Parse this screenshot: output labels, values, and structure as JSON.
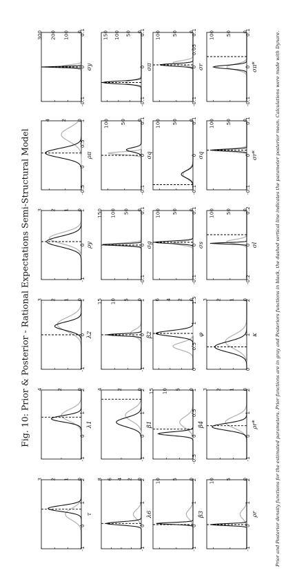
{
  "title": "Fig. 10: Prior & Posterior - Rational Expectations Semi-Structural Model",
  "caption": "Prior and Posterior density functions for the estimated parameters. Prior functions are in gray and Posteriors functions in black, the dashed vertical line indicates the parameter posterior mean. Calculations were made with Dynare.",
  "colors": {
    "prior": "#b4b4b4",
    "posterior": "#111111",
    "mode": "#000000",
    "frame": "#000000"
  },
  "chart_data": [
    {
      "type": "line",
      "label": "τ",
      "xlim": [
        -1,
        2
      ],
      "xticks": [
        "-1",
        "0",
        "1",
        "2"
      ],
      "ylim": [
        0,
        3
      ],
      "yticks": [
        "0",
        "1",
        "2",
        "3"
      ],
      "prior": {
        "mean": 0.5,
        "sd": 0.25,
        "peak": 1.2
      },
      "posterior": {
        "mean": 0.75,
        "sd": 0.13,
        "peak": 2.5
      },
      "posterior_mean": 0.72
    },
    {
      "type": "line",
      "label": "λ1",
      "xlim": [
        -1,
        2
      ],
      "xticks": [
        "-1",
        "0",
        "1",
        "2"
      ],
      "ylim": [
        0,
        4
      ],
      "yticks": [
        "0",
        "2",
        "4"
      ],
      "prior": {
        "mean": 0.9,
        "sd": 0.25,
        "peak": 2.0
      },
      "posterior": {
        "mean": 0.75,
        "sd": 0.14,
        "peak": 3.0
      },
      "posterior_mean": 0.82
    },
    {
      "type": "line",
      "label": "λ2",
      "xlim": [
        -1,
        1
      ],
      "xticks": [
        "-1",
        "0",
        "1"
      ],
      "ylim": [
        0,
        3
      ],
      "yticks": [
        "0",
        "1",
        "2",
        "3"
      ],
      "prior": {
        "mean": 0.3,
        "sd": 0.2,
        "peak": 1.8
      },
      "posterior": {
        "mean": 0.25,
        "sd": 0.12,
        "peak": 2.0
      },
      "posterior_mean": 0.0
    },
    {
      "type": "line",
      "label": "ρy",
      "xlim": [
        -1,
        1
      ],
      "xticks": [
        "-1",
        "0",
        "1"
      ],
      "ylim": [
        0,
        3
      ],
      "yticks": [
        "0",
        "1",
        "2",
        "3"
      ],
      "prior": {
        "mean": 0.2,
        "sd": 0.16,
        "peak": 2.4
      },
      "posterior": {
        "mean": 0.1,
        "sd": 0.15,
        "peak": 2.6
      },
      "posterior_mean": 0.1
    },
    {
      "type": "line",
      "label": "ρπ",
      "xlim": [
        -0.5,
        1
      ],
      "xticks": [
        "-0.5",
        "0",
        "0.5",
        "1"
      ],
      "ylim": [
        0,
        5
      ],
      "yticks": [
        "0",
        "2",
        "4"
      ],
      "prior": {
        "mean": 0.7,
        "sd": 0.15,
        "peak": 2.5
      },
      "posterior": {
        "mean": 0.3,
        "sd": 0.1,
        "peak": 4.5
      },
      "posterior_mean": 0.3
    },
    {
      "type": "line",
      "label": "σy",
      "xlim": [
        -0.1,
        0.1
      ],
      "xticks": [
        "-0.1",
        "0",
        "0.1"
      ],
      "ylim": [
        0,
        300
      ],
      "yticks": [
        "0",
        "100",
        "200",
        "300"
      ],
      "prior": {
        "mean": 0.002,
        "sd": 0.004,
        "peak": 150
      },
      "posterior": {
        "mean": 0.0,
        "sd": 0.0015,
        "peak": 300
      },
      "posterior_mean": 0.0
    },
    {
      "type": "line",
      "label": "λ6",
      "xlim": [
        -1,
        2
      ],
      "xticks": [
        "-1",
        "0",
        "1",
        "2"
      ],
      "ylim": [
        0,
        8
      ],
      "yticks": [
        "0",
        "2",
        "4",
        "6",
        "8"
      ],
      "prior": {
        "mean": 0.5,
        "sd": 0.2,
        "peak": 1.6
      },
      "posterior": {
        "mean": 0.1,
        "sd": 0.07,
        "peak": 7.0
      },
      "posterior_mean": 0.1
    },
    {
      "type": "line",
      "label": "β1",
      "xlim": [
        -1,
        2
      ],
      "xticks": [
        "-1",
        "0",
        "1",
        "2"
      ],
      "ylim": [
        0,
        4
      ],
      "yticks": [
        "0",
        "2",
        "4"
      ],
      "prior": {
        "mean": 0.9,
        "sd": 0.25,
        "peak": 1.6
      },
      "posterior": {
        "mean": 0.6,
        "sd": 0.2,
        "peak": 2.5
      },
      "posterior_mean": 1.6
    },
    {
      "type": "line",
      "label": "β2",
      "xlim": [
        -1,
        1
      ],
      "xticks": [
        "-1",
        "0",
        "1"
      ],
      "ylim": [
        0,
        15
      ],
      "yticks": [
        "0",
        "5",
        "10",
        "15"
      ],
      "prior": {
        "mean": 0.05,
        "sd": 0.1,
        "peak": 4
      },
      "posterior": {
        "mean": 0.0,
        "sd": 0.03,
        "peak": 13
      },
      "posterior_mean": 0.0
    },
    {
      "type": "line",
      "label": "σg",
      "xlim": [
        -0.1,
        0.1
      ],
      "xticks": [
        "-0.1",
        "0",
        "0.1"
      ],
      "ylim": [
        0,
        150
      ],
      "yticks": [
        "0",
        "50",
        "100",
        "150"
      ],
      "prior": {
        "mean": 0.002,
        "sd": 0.004,
        "peak": 110
      },
      "posterior": {
        "mean": 0.001,
        "sd": 0.0025,
        "peak": 150
      },
      "posterior_mean": 0.0
    },
    {
      "type": "line",
      "label": "σq",
      "xlim": [
        -0.1,
        0.1
      ],
      "xticks": [
        "-0.1",
        "0",
        "0.1"
      ],
      "ylim": [
        0,
        120
      ],
      "yticks": [
        "0",
        "50",
        "100"
      ],
      "prior": {
        "mean": 0.006,
        "sd": 0.004,
        "peak": 100
      },
      "posterior": {
        "mean": 0.016,
        "sd": 0.006,
        "peak": 45
      },
      "posterior_mean": 0.0
    },
    {
      "type": "line",
      "label": "σπ",
      "xlim": [
        -0.1,
        0.1
      ],
      "xticks": [
        "-0.1",
        "0",
        "0.1"
      ],
      "ylim": [
        0,
        175
      ],
      "yticks": [
        "0",
        "50",
        "100",
        "150"
      ],
      "prior": {
        "mean": -0.045,
        "sd": 0.006,
        "peak": 70
      },
      "posterior": {
        "mean": -0.045,
        "sd": 0.004,
        "peak": 170
      },
      "posterior_mean": -0.045
    },
    {
      "type": "line",
      "label": "β3",
      "xlim": [
        -1,
        2
      ],
      "xticks": [
        "-1",
        "0",
        "1",
        "2"
      ],
      "ylim": [
        0,
        12
      ],
      "yticks": [
        "0",
        "5",
        "10"
      ],
      "prior": {
        "mean": 0.5,
        "sd": 0.2,
        "peak": 2
      },
      "posterior": {
        "mean": 0.1,
        "sd": 0.04,
        "peak": 11
      },
      "posterior_mean": 0.05
    },
    {
      "type": "line",
      "label": "β4",
      "xlim": [
        -0.5,
        1
      ],
      "xticks": [
        "-0.5",
        "0",
        "0.5",
        "1"
      ],
      "ylim": [
        0,
        15
      ],
      "yticks": [
        "0",
        "5",
        "10",
        "15"
      ],
      "prior": {
        "mean": 0.3,
        "sd": 0.12,
        "peak": 5
      },
      "posterior": {
        "mean": 0.05,
        "sd": 0.04,
        "peak": 13
      },
      "posterior_mean": 0.15
    },
    {
      "type": "line",
      "label": "φ",
      "xlim": [
        0,
        1.5
      ],
      "xticks": [
        "0",
        "0.5",
        "1",
        "1.5"
      ],
      "ylim": [
        0,
        7
      ],
      "yticks": [
        "0",
        "2",
        "4",
        "6"
      ],
      "prior": {
        "mean": 0.5,
        "sd": 0.08,
        "peak": 3.5
      },
      "posterior": {
        "mean": 0.78,
        "sd": 0.06,
        "peak": 6.5
      },
      "posterior_mean": 0.78
    },
    {
      "type": "line",
      "label": "σs",
      "xlim": [
        -0.1,
        0.1
      ],
      "xticks": [
        "-0.1",
        "0",
        "0.1"
      ],
      "ylim": [
        0,
        120
      ],
      "yticks": [
        "0",
        "50",
        "100"
      ],
      "prior": {
        "mean": 0.005,
        "sd": 0.005,
        "peak": 60
      },
      "posterior": {
        "mean": 0.008,
        "sd": 0.0035,
        "peak": 115
      },
      "posterior_mean": 0.008
    },
    {
      "type": "line",
      "label": "σq",
      "xlim": [
        -0.1,
        0.1
      ],
      "xticks": [
        "-0.1",
        "0",
        "0.1"
      ],
      "ylim": [
        0,
        120
      ],
      "yticks": [
        "0",
        "50",
        "100"
      ],
      "prior": {
        "mean": -0.055,
        "sd": 0.012,
        "peak": 30
      },
      "posterior": {
        "mean": -0.055,
        "sd": 0.01,
        "peak": 35
      },
      "posterior_mean": -0.085
    },
    {
      "type": "line",
      "label": "σr",
      "xlim": [
        -0.1,
        0.1
      ],
      "xticks": [
        "-0.1",
        "0",
        "0.05",
        "0.1"
      ],
      "ylim": [
        0,
        120
      ],
      "yticks": [
        "0",
        "50",
        "100"
      ],
      "prior": {
        "mean": 0.012,
        "sd": 0.006,
        "peak": 60
      },
      "posterior": {
        "mean": 0.006,
        "sd": 0.0035,
        "peak": 100
      },
      "posterior_mean": 0.006
    },
    {
      "type": "line",
      "label": "ρr",
      "xlim": [
        -1,
        2
      ],
      "xticks": [
        "-1",
        "0",
        "1",
        "2"
      ],
      "ylim": [
        0,
        12
      ],
      "yticks": [
        "0",
        "5",
        "10"
      ],
      "prior": {
        "mean": 0.5,
        "sd": 0.2,
        "peak": 2
      },
      "posterior": {
        "mean": 0.05,
        "sd": 0.04,
        "peak": 11
      },
      "posterior_mean": 0.05
    },
    {
      "type": "line",
      "label": "ρr*",
      "xlim": [
        -1,
        2
      ],
      "xticks": [
        "-1",
        "0",
        "1",
        "2"
      ],
      "ylim": [
        0,
        3
      ],
      "yticks": [
        "0",
        "1",
        "2",
        "3"
      ],
      "prior": {
        "mean": 0.6,
        "sd": 0.25,
        "peak": 1.6
      },
      "posterior": {
        "mean": 0.4,
        "sd": 0.15,
        "peak": 2.6
      },
      "posterior_mean": 0.45
    },
    {
      "type": "line",
      "label": "κ",
      "xlim": [
        0,
        2
      ],
      "xticks": [
        "0",
        "1",
        "2"
      ],
      "ylim": [
        0,
        3
      ],
      "yticks": [
        "0",
        "1",
        "2",
        "3"
      ],
      "prior": {
        "mean": 0.8,
        "sd": 0.2,
        "peak": 1.6
      },
      "posterior": {
        "mean": 0.65,
        "sd": 0.15,
        "peak": 2.4
      },
      "posterior_mean": 0.65
    },
    {
      "type": "line",
      "label": "σl",
      "xlim": [
        -0.2,
        0.2
      ],
      "xticks": [
        "-0.2",
        "0",
        "0.2"
      ],
      "ylim": [
        0,
        120
      ],
      "yticks": [
        "0",
        "50",
        "100"
      ],
      "prior": {
        "mean": 0.02,
        "sd": 0.012,
        "peak": 60
      },
      "posterior": {
        "mean": 0.01,
        "sd": 0.004,
        "peak": 110
      },
      "posterior_mean": 0.06
    },
    {
      "type": "line",
      "label": "σr*",
      "xlim": [
        -0.1,
        0.1
      ],
      "xticks": [
        "-0.1",
        "0",
        "0.1"
      ],
      "ylim": [
        0,
        120
      ],
      "yticks": [
        "0",
        "50",
        "100"
      ],
      "prior": {
        "mean": 0.015,
        "sd": 0.004,
        "peak": 90
      },
      "posterior": {
        "mean": 0.015,
        "sd": 0.0025,
        "peak": 110
      },
      "posterior_mean": 0.015
    },
    {
      "type": "line",
      "label": "σπ*",
      "xlim": [
        -0.1,
        0.1
      ],
      "xticks": [
        "-0.1",
        "0",
        "0.1"
      ],
      "ylim": [
        0,
        120
      ],
      "yticks": [
        "0",
        "50",
        "100"
      ],
      "prior": {
        "mean": 0.0,
        "sd": 0.008,
        "peak": 60
      },
      "posterior": {
        "mean": 0.0,
        "sd": 0.005,
        "peak": 100
      },
      "posterior_mean": 0.03
    }
  ]
}
